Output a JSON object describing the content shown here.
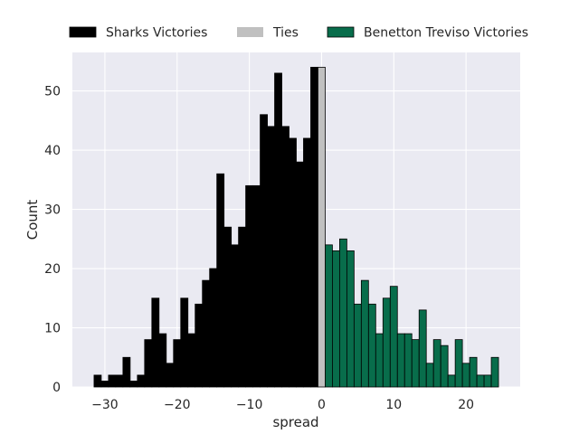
{
  "chart_data": {
    "type": "bar",
    "subtype": "histogram",
    "xlabel": "spread",
    "ylabel": "Count",
    "xlim": [
      -34.5,
      27.5
    ],
    "ylim": [
      0,
      56.5
    ],
    "xticks": [
      -30,
      -20,
      -10,
      0,
      10,
      20
    ],
    "xtick_labels": [
      "−30",
      "−20",
      "−10",
      "0",
      "10",
      "20"
    ],
    "yticks": [
      0,
      10,
      20,
      30,
      40,
      50
    ],
    "grid": true,
    "legend_position": "top",
    "series": [
      {
        "name": "Sharks Victories",
        "color": "#000000",
        "x": [
          -31,
          -30,
          -29,
          -28,
          -27,
          -26,
          -25,
          -24,
          -23,
          -22,
          -21,
          -20,
          -19,
          -18,
          -17,
          -16,
          -15,
          -14,
          -13,
          -12,
          -11,
          -10,
          -9,
          -8,
          -7,
          -6,
          -5,
          -4,
          -3,
          -2,
          -1
        ],
        "values": [
          2,
          1,
          2,
          2,
          5,
          1,
          2,
          8,
          15,
          9,
          4,
          8,
          15,
          9,
          14,
          18,
          20,
          36,
          27,
          24,
          27,
          34,
          34,
          46,
          44,
          53,
          44,
          42,
          38,
          42,
          54
        ]
      },
      {
        "name": "Ties",
        "color": "#c0c0c0",
        "x": [
          0
        ],
        "values": [
          54
        ]
      },
      {
        "name": "Benetton Treviso Victories",
        "color": "#086d4b",
        "x": [
          1,
          2,
          3,
          4,
          5,
          6,
          7,
          8,
          9,
          10,
          11,
          12,
          13,
          14,
          15,
          16,
          17,
          18,
          19,
          20,
          21,
          22,
          23,
          24
        ],
        "values": [
          24,
          23,
          25,
          23,
          14,
          18,
          14,
          9,
          15,
          17,
          9,
          9,
          8,
          13,
          4,
          8,
          7,
          2,
          8,
          4,
          5,
          2,
          2,
          5
        ]
      }
    ]
  }
}
